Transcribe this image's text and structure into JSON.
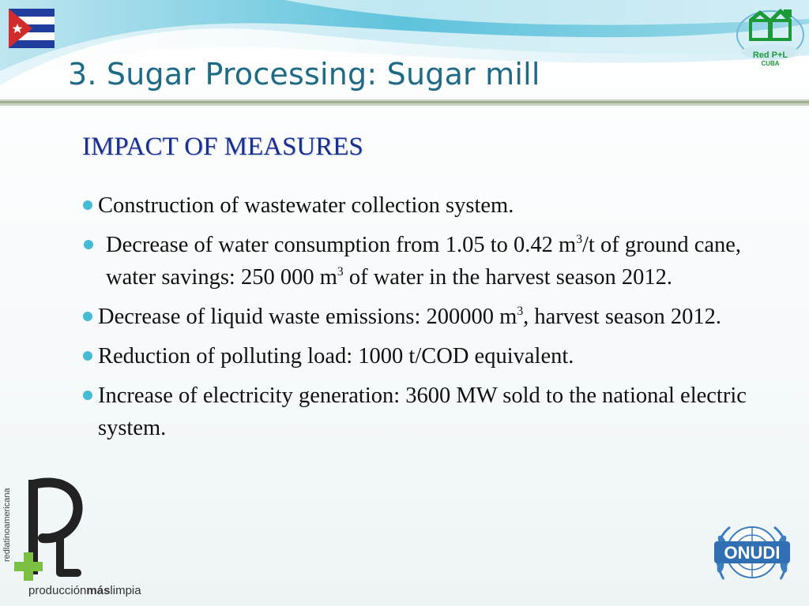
{
  "slide": {
    "title": "3. Sugar Processing: Sugar mill",
    "heading": "IMPACT OF MEASURES",
    "bullets": [
      {
        "parts": [
          "Construction of wastewater collection system."
        ]
      },
      {
        "parts": [
          "Decrease of water consumption from 1.05 to 0.42 m",
          "3",
          "/t of ground cane, water savings: 250 000 m",
          "3",
          " of water in the harvest season 2012."
        ]
      },
      {
        "parts": [
          "Decrease of liquid waste emissions: 200000 m",
          "3",
          ", harvest season 2012."
        ]
      },
      {
        "parts": [
          "Reduction of polluting load: 1000 t/COD equivalent."
        ]
      },
      {
        "parts": [
          "Increase of electricity generation: 3600 MW sold to the national electric system."
        ]
      }
    ]
  },
  "logos": {
    "redpl_name": "Red P+L",
    "redpl_country": "CUBA",
    "plus_caption_a": "producción",
    "plus_caption_b": "más",
    "plus_caption_c": "limpia",
    "plus_vertical": "redlatinoamericana",
    "onudi_name": "ONUDI"
  },
  "colors": {
    "title": "#1f6b86",
    "heading": "#1b2f8e",
    "bullet": "#46bcd4",
    "swoosh": "#5ec3dc",
    "logo_green": "#1c9a3a"
  }
}
